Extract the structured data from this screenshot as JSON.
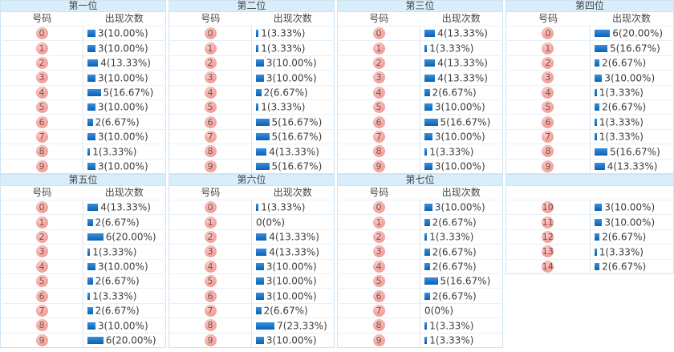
{
  "headers": {
    "number_col": "号码",
    "count_col": "出现次数"
  },
  "colors": {
    "title_bg": "#d8eefb",
    "table_border": "#cfe3f2",
    "bar_top": "#3990e0",
    "bar_bottom": "#0b60b0",
    "ball_pink": "#f5a8a2",
    "text": "#3c3c3c"
  },
  "chart_data": [
    {
      "type": "bar",
      "title": "第一位",
      "xlabel": "号码",
      "ylabel": "出现次数",
      "categories": [
        0,
        1,
        2,
        3,
        4,
        5,
        6,
        7,
        8,
        9
      ],
      "values": [
        3,
        3,
        4,
        3,
        5,
        3,
        2,
        3,
        1,
        3
      ],
      "value_labels": [
        "3(10.00%)",
        "3(10.00%)",
        "4(13.33%)",
        "3(10.00%)",
        "5(16.67%)",
        "3(10.00%)",
        "2(6.67%)",
        "3(10.00%)",
        "1(3.33%)",
        "3(10.00%)"
      ]
    },
    {
      "type": "bar",
      "title": "第二位",
      "xlabel": "号码",
      "ylabel": "出现次数",
      "categories": [
        0,
        1,
        2,
        3,
        4,
        5,
        6,
        7,
        8,
        9
      ],
      "values": [
        1,
        1,
        3,
        3,
        2,
        1,
        5,
        5,
        4,
        5
      ],
      "value_labels": [
        "1(3.33%)",
        "1(3.33%)",
        "3(10.00%)",
        "3(10.00%)",
        "2(6.67%)",
        "1(3.33%)",
        "5(16.67%)",
        "5(16.67%)",
        "4(13.33%)",
        "5(16.67%)"
      ]
    },
    {
      "type": "bar",
      "title": "第三位",
      "xlabel": "号码",
      "ylabel": "出现次数",
      "categories": [
        0,
        1,
        2,
        3,
        4,
        5,
        6,
        7,
        8,
        9
      ],
      "values": [
        4,
        1,
        4,
        4,
        2,
        3,
        5,
        3,
        1,
        3
      ],
      "value_labels": [
        "4(13.33%)",
        "1(3.33%)",
        "4(13.33%)",
        "4(13.33%)",
        "2(6.67%)",
        "3(10.00%)",
        "5(16.67%)",
        "3(10.00%)",
        "1(3.33%)",
        "3(10.00%)"
      ]
    },
    {
      "type": "bar",
      "title": "第四位",
      "xlabel": "号码",
      "ylabel": "出现次数",
      "categories": [
        0,
        1,
        2,
        3,
        4,
        5,
        6,
        7,
        8,
        9
      ],
      "values": [
        6,
        5,
        2,
        3,
        1,
        2,
        1,
        1,
        5,
        4
      ],
      "value_labels": [
        "6(20.00%)",
        "5(16.67%)",
        "2(6.67%)",
        "3(10.00%)",
        "1(3.33%)",
        "2(6.67%)",
        "1(3.33%)",
        "1(3.33%)",
        "5(16.67%)",
        "4(13.33%)"
      ]
    },
    {
      "type": "bar",
      "title": "第五位",
      "xlabel": "号码",
      "ylabel": "出现次数",
      "categories": [
        0,
        1,
        2,
        3,
        4,
        5,
        6,
        7,
        8,
        9
      ],
      "values": [
        4,
        2,
        6,
        1,
        3,
        2,
        1,
        2,
        3,
        6
      ],
      "value_labels": [
        "4(13.33%)",
        "2(6.67%)",
        "6(20.00%)",
        "1(3.33%)",
        "3(10.00%)",
        "2(6.67%)",
        "1(3.33%)",
        "2(6.67%)",
        "3(10.00%)",
        "6(20.00%)"
      ]
    },
    {
      "type": "bar",
      "title": "第六位",
      "xlabel": "号码",
      "ylabel": "出现次数",
      "categories": [
        0,
        1,
        2,
        3,
        4,
        5,
        6,
        7,
        8,
        9
      ],
      "values": [
        1,
        0,
        4,
        4,
        3,
        3,
        3,
        2,
        7,
        3
      ],
      "value_labels": [
        "1(3.33%)",
        "0(0%)",
        "4(13.33%)",
        "4(13.33%)",
        "3(10.00%)",
        "3(10.00%)",
        "3(10.00%)",
        "2(6.67%)",
        "7(23.33%)",
        "3(10.00%)"
      ]
    },
    {
      "type": "bar",
      "title": "第七位",
      "xlabel": "号码",
      "ylabel": "出现次数",
      "categories": [
        0,
        1,
        2,
        3,
        4,
        5,
        6,
        7,
        8,
        9,
        10,
        11,
        12,
        13,
        14
      ],
      "values": [
        3,
        2,
        1,
        2,
        2,
        5,
        2,
        0,
        1,
        1,
        3,
        3,
        2,
        1,
        2
      ],
      "value_labels": [
        "3(10.00%)",
        "2(6.67%)",
        "1(3.33%)",
        "2(6.67%)",
        "2(6.67%)",
        "5(16.67%)",
        "2(6.67%)",
        "0(0%)",
        "1(3.33%)",
        "1(3.33%)",
        "3(10.00%)",
        "3(10.00%)",
        "2(6.67%)",
        "1(3.33%)",
        "2(6.67%)"
      ]
    }
  ],
  "sections": [
    {
      "groups": [
        {
          "title": "第一位",
          "position_index": 0,
          "from": 0,
          "to": 9,
          "show_header": true
        },
        {
          "title": "第二位",
          "position_index": 1,
          "from": 0,
          "to": 9,
          "show_header": true
        },
        {
          "title": "第三位",
          "position_index": 2,
          "from": 0,
          "to": 9,
          "show_header": true
        },
        {
          "title": "第四位",
          "position_index": 3,
          "from": 0,
          "to": 9,
          "show_header": true
        }
      ]
    },
    {
      "groups": [
        {
          "title": "第五位",
          "position_index": 4,
          "from": 0,
          "to": 9,
          "show_header": true
        },
        {
          "title": "第六位",
          "position_index": 5,
          "from": 0,
          "to": 9,
          "show_header": true
        },
        {
          "title": "第七位",
          "position_index": 6,
          "from": 0,
          "to": 9,
          "show_header": true
        },
        {
          "title": "",
          "position_index": 6,
          "from": 10,
          "to": 14,
          "show_header": false
        }
      ]
    }
  ]
}
